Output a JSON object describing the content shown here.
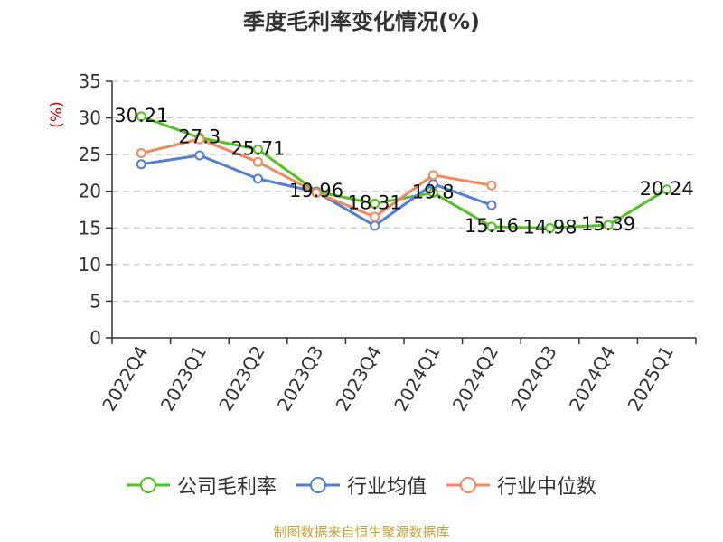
{
  "chart_data": {
    "type": "line",
    "title": "季度毛利率变化情况(%)",
    "ylabel": "(%)",
    "xlabel": "",
    "ylim": [
      0,
      35
    ],
    "yticks": [
      0,
      5,
      10,
      15,
      20,
      25,
      30,
      35
    ],
    "grid": true,
    "legend_position": "bottom",
    "categories": [
      "2022Q4",
      "2023Q1",
      "2023Q2",
      "2023Q3",
      "2023Q4",
      "2024Q1",
      "2024Q2",
      "2024Q3",
      "2024Q4",
      "2025Q1"
    ],
    "series": [
      {
        "name": "公司毛利率",
        "color": "#52c41a",
        "values": [
          30.21,
          27.3,
          25.71,
          19.96,
          18.31,
          19.8,
          15.16,
          14.98,
          15.39,
          20.24
        ],
        "labels": [
          "30.21",
          "27.3",
          "25.71",
          "19.96",
          "18.31",
          "19.8",
          "15.16",
          "14.98",
          "15.39",
          "20.24"
        ]
      },
      {
        "name": "行业均值",
        "color": "#4d7fdb",
        "values": [
          23.7,
          24.9,
          21.7,
          19.9,
          15.3,
          21.0,
          18.1,
          null,
          null,
          null
        ]
      },
      {
        "name": "行业中位数",
        "color": "#f5885a",
        "values": [
          25.2,
          27.1,
          24.0,
          19.8,
          16.5,
          22.2,
          20.8,
          null,
          null,
          null
        ]
      }
    ]
  },
  "source": "制图数据来自恒生聚源数据库"
}
